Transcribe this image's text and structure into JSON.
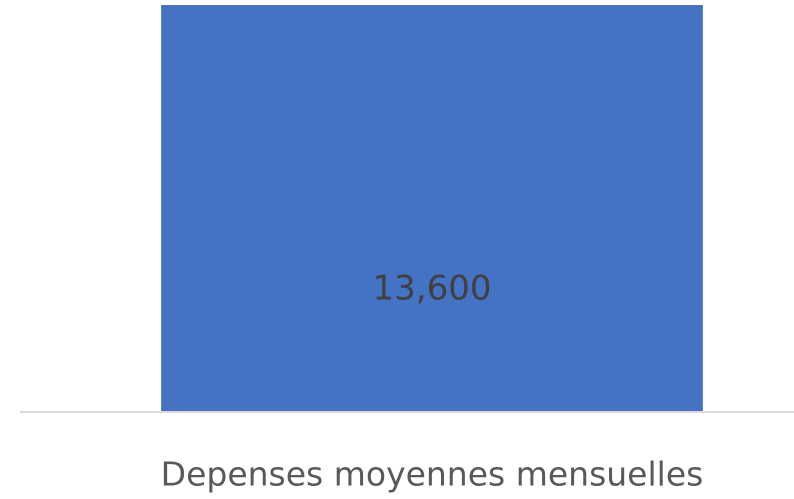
{
  "chart_data": {
    "type": "bar",
    "categories": [
      "Depenses moyennes mensuelles"
    ],
    "values": [
      13600
    ],
    "value_labels": [
      "13,600"
    ],
    "color": "#4472c4"
  }
}
